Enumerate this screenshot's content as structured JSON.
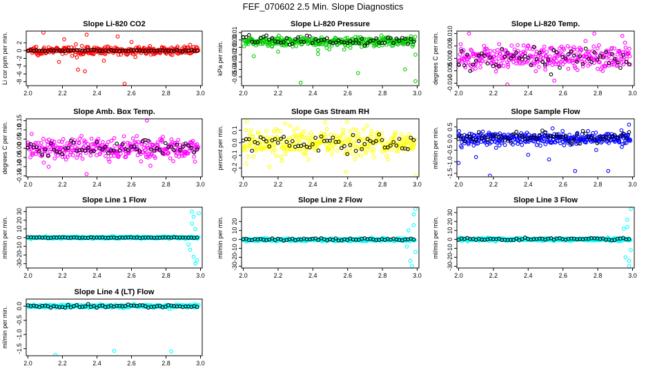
{
  "page_title": "FEF_070602  2.5 Min. Slope Diagnostics",
  "chart_data": [
    {
      "type": "scatter",
      "title": "Slope Li-820 CO2",
      "ylabel": "Li cor ppm per min.",
      "xlim": [
        1.99,
        3.01
      ],
      "ylim": [
        -9,
        5
      ],
      "xticks": [
        2.0,
        2.2,
        2.4,
        2.6,
        2.8,
        3.0
      ],
      "xtick_labels": [
        "2.0",
        "2.2",
        "2.4",
        "2.6",
        "2.8",
        "3.0"
      ],
      "yticks": [
        -8,
        -6,
        -4,
        -2,
        0,
        2
      ],
      "ytick_labels": [
        "-8",
        "-6",
        "-4",
        "-2",
        "0",
        "2"
      ],
      "grid": false,
      "color": "#ff0000",
      "center": 0.0,
      "spread": 0.9,
      "outliers": [
        [
          2.09,
          4.6
        ],
        [
          2.34,
          4.1
        ],
        [
          2.52,
          3.6
        ],
        [
          2.29,
          -4.9
        ],
        [
          2.33,
          -5.3
        ],
        [
          2.56,
          -8.5
        ],
        [
          2.21,
          2.9
        ],
        [
          2.18,
          -2.9
        ],
        [
          2.44,
          -2.6
        ],
        [
          2.6,
          2.2
        ]
      ],
      "black_center": 0.0,
      "black_spread": 0.15
    },
    {
      "type": "scatter",
      "title": "Slope Li-820 Pressure",
      "ylabel": "kPa per min.",
      "xlim": [
        1.99,
        3.01
      ],
      "ylim": [
        -0.062,
        0.012
      ],
      "xticks": [
        2.0,
        2.2,
        2.4,
        2.6,
        2.8,
        3.0
      ],
      "xtick_labels": [
        "2.0",
        "2.2",
        "2.4",
        "2.6",
        "2.8",
        "3.0"
      ],
      "yticks": [
        -0.05,
        -0.04,
        -0.03,
        -0.02,
        -0.01,
        0.0,
        0.01
      ],
      "ytick_labels": [
        "-0.05",
        "-0.04",
        "-0.03",
        "-0.02",
        "-0.01",
        "0.00",
        "0.01"
      ],
      "grid": false,
      "color": "#00cc00",
      "center": -0.002,
      "spread": 0.006,
      "outliers": [
        [
          2.33,
          -0.058
        ],
        [
          2.99,
          -0.056
        ],
        [
          2.66,
          -0.045
        ],
        [
          2.93,
          -0.04
        ],
        [
          2.99,
          -0.02
        ],
        [
          2.06,
          -0.022
        ],
        [
          2.43,
          -0.019
        ],
        [
          2.2,
          -0.016
        ],
        [
          2.58,
          -0.013
        ]
      ],
      "black_center": -0.001,
      "black_spread": 0.006
    },
    {
      "type": "scatter",
      "title": "Slope Li-820 Temp.",
      "ylabel": "degrees C per min.",
      "xlim": [
        1.99,
        3.01
      ],
      "ylim": [
        -0.011,
        0.011
      ],
      "xticks": [
        2.0,
        2.2,
        2.4,
        2.6,
        2.8,
        3.0
      ],
      "xtick_labels": [
        "2.0",
        "2.2",
        "2.4",
        "2.6",
        "2.8",
        "3.0"
      ],
      "yticks": [
        -0.01,
        -0.005,
        0.0,
        0.005,
        0.01
      ],
      "ytick_labels": [
        "-0.010",
        "-0.005",
        "0.000",
        "0.005",
        "0.010"
      ],
      "grid": false,
      "color": "#ff00ff",
      "center": 0.0005,
      "spread": 0.0045,
      "outliers": [
        [
          2.06,
          0.01
        ],
        [
          2.78,
          0.01
        ],
        [
          2.28,
          -0.0105
        ],
        [
          2.55,
          -0.009
        ]
      ],
      "black_center": 0.0,
      "black_spread": 0.004
    },
    {
      "type": "scatter",
      "title": "Slope Amb. Box Temp.",
      "ylabel": "degrees C per min.",
      "xlim": [
        1.99,
        3.01
      ],
      "ylim": [
        -0.155,
        0.16
      ],
      "xticks": [
        2.0,
        2.2,
        2.4,
        2.6,
        2.8,
        3.0
      ],
      "xtick_labels": [
        "2.0",
        "2.2",
        "2.4",
        "2.6",
        "2.8",
        "3.0"
      ],
      "yticks": [
        -0.15,
        -0.1,
        -0.05,
        0.0,
        0.05,
        0.1,
        0.15
      ],
      "ytick_labels": [
        "-0.15",
        "-0.10",
        "-0.05",
        "0.00",
        "0.05",
        "0.10",
        "0.15"
      ],
      "grid": false,
      "color": "#ff00ff",
      "center": 0.0,
      "spread": 0.055,
      "outliers": [
        [
          2.69,
          0.15
        ],
        [
          2.34,
          -0.14
        ],
        [
          2.12,
          -0.1
        ],
        [
          2.71,
          -0.095
        ]
      ],
      "black_center": 0.0,
      "black_spread": 0.035
    },
    {
      "type": "scatter",
      "title": "Slope Gas Stream RH",
      "ylabel": "percent per min.",
      "xlim": [
        1.99,
        3.01
      ],
      "ylim": [
        -0.27,
        0.19
      ],
      "xticks": [
        2.0,
        2.2,
        2.4,
        2.6,
        2.8,
        3.0
      ],
      "xtick_labels": [
        "2.0",
        "2.2",
        "2.4",
        "2.6",
        "2.8",
        "3.0"
      ],
      "yticks": [
        -0.2,
        -0.1,
        0.0,
        0.1
      ],
      "ytick_labels": [
        "-0.2",
        "-0.1",
        "0.0",
        "0.1"
      ],
      "grid": false,
      "color": "#ffff00",
      "center": 0.0,
      "spread": 0.09,
      "outliers": [
        [
          2.02,
          0.17
        ],
        [
          2.99,
          -0.26
        ],
        [
          2.59,
          -0.23
        ],
        [
          2.15,
          -0.19
        ]
      ],
      "black_center": 0.0,
      "black_spread": 0.06
    },
    {
      "type": "scatter",
      "title": "Slope Sample Flow",
      "ylabel": "ml/min per min.",
      "xlim": [
        1.99,
        3.01
      ],
      "ylim": [
        -1.65,
        0.85
      ],
      "xticks": [
        2.0,
        2.2,
        2.4,
        2.6,
        2.8,
        3.0
      ],
      "xtick_labels": [
        "2.0",
        "2.2",
        "2.4",
        "2.6",
        "2.8",
        "3.0"
      ],
      "yticks": [
        -1.5,
        -1.0,
        -0.5,
        0.0,
        0.5
      ],
      "ytick_labels": [
        "-1.5",
        "-1.0",
        "-0.5",
        "0.0",
        "0.5"
      ],
      "grid": false,
      "color": "#0000ff",
      "center": 0.0,
      "spread": 0.25,
      "outliers": [
        [
          2.18,
          -1.6
        ],
        [
          2.0,
          -1.05
        ],
        [
          2.67,
          -1.4
        ],
        [
          2.86,
          -1.4
        ],
        [
          2.98,
          0.6
        ],
        [
          2.1,
          -0.8
        ],
        [
          2.52,
          -0.9
        ],
        [
          2.4,
          -0.7
        ]
      ],
      "black_center": 0.05,
      "black_spread": 0.22
    },
    {
      "type": "scatter",
      "title": "Slope Line 1 Flow",
      "ylabel": "ml/min per min.",
      "xlim": [
        1.99,
        3.01
      ],
      "ylim": [
        -35,
        35
      ],
      "xticks": [
        2.0,
        2.2,
        2.4,
        2.6,
        2.8,
        3.0
      ],
      "xtick_labels": [
        "2.0",
        "2.2",
        "2.4",
        "2.6",
        "2.8",
        "3.0"
      ],
      "yticks": [
        -30,
        -20,
        -10,
        0,
        10,
        20,
        30
      ],
      "ytick_labels": [
        "-30",
        "-20",
        "-10",
        "0",
        "10",
        "20",
        "30"
      ],
      "grid": false,
      "color": "#00ffff",
      "center": 0.0,
      "spread": 1.2,
      "outliers": [
        [
          2.95,
          30
        ],
        [
          2.96,
          24
        ],
        [
          2.97,
          -30
        ],
        [
          2.96,
          -22
        ],
        [
          2.94,
          -14
        ],
        [
          2.95,
          16
        ],
        [
          2.97,
          10
        ],
        [
          2.93,
          -8
        ],
        [
          2.98,
          -26
        ],
        [
          2.99,
          28
        ]
      ],
      "black_center": 0.0,
      "black_spread": 0.3
    },
    {
      "type": "scatter",
      "title": "Slope Line 2 Flow",
      "ylabel": "ml/min per min.",
      "xlim": [
        1.99,
        3.01
      ],
      "ylim": [
        -32,
        36
      ],
      "xticks": [
        2.0,
        2.2,
        2.4,
        2.6,
        2.8,
        3.0
      ],
      "xtick_labels": [
        "2.0",
        "2.2",
        "2.4",
        "2.6",
        "2.8",
        "3.0"
      ],
      "yticks": [
        -30,
        -20,
        -10,
        0,
        10,
        20
      ],
      "ytick_labels": [
        "-30",
        "-20",
        "-10",
        "0",
        "10",
        "20"
      ],
      "grid": false,
      "color": "#00ffff",
      "center": -0.5,
      "spread": 1.5,
      "outliers": [
        [
          2.99,
          34
        ],
        [
          2.98,
          28
        ],
        [
          2.97,
          -30
        ],
        [
          2.96,
          -24
        ],
        [
          2.98,
          16
        ],
        [
          2.95,
          10
        ],
        [
          2.99,
          -14
        ],
        [
          2.94,
          -8
        ]
      ],
      "black_center": 0.0,
      "black_spread": 1.0
    },
    {
      "type": "scatter",
      "title": "Slope Line 3 Flow",
      "ylabel": "ml/min per min.",
      "xlim": [
        1.99,
        3.01
      ],
      "ylim": [
        -32,
        36
      ],
      "xticks": [
        2.0,
        2.2,
        2.4,
        2.6,
        2.8,
        3.0
      ],
      "xtick_labels": [
        "2.0",
        "2.2",
        "2.4",
        "2.6",
        "2.8",
        "3.0"
      ],
      "yticks": [
        -30,
        -20,
        -10,
        0,
        10,
        20,
        30
      ],
      "ytick_labels": [
        "-30",
        "-20",
        "-10",
        "0",
        "10",
        "20",
        "30"
      ],
      "grid": false,
      "color": "#00ffff",
      "center": 0.0,
      "spread": 1.5,
      "outliers": [
        [
          2.99,
          34
        ],
        [
          2.98,
          -30
        ],
        [
          2.97,
          22
        ],
        [
          2.96,
          -20
        ],
        [
          2.95,
          12
        ],
        [
          2.99,
          -12
        ],
        [
          2.97,
          14
        ],
        [
          2.98,
          -24
        ]
      ],
      "black_center": 0.5,
      "black_spread": 1.2
    },
    {
      "type": "scatter",
      "title": "Slope Line 4 (LT) Flow",
      "ylabel": "ml/min per min.",
      "xlim": [
        1.99,
        3.01
      ],
      "ylim": [
        -1.75,
        0.25
      ],
      "xticks": [
        2.0,
        2.2,
        2.4,
        2.6,
        2.8,
        3.0
      ],
      "xtick_labels": [
        "2.0",
        "2.2",
        "2.4",
        "2.6",
        "2.8",
        "3.0"
      ],
      "yticks": [
        -1.5,
        -1.0,
        -0.5,
        0.0
      ],
      "ytick_labels": [
        "-1.5",
        "-1.0",
        "-0.5",
        "0.0"
      ],
      "grid": false,
      "color": "#00ffff",
      "center": 0.0,
      "spread": 0.05,
      "outliers": [
        [
          2.16,
          -1.72
        ],
        [
          2.5,
          -1.58
        ],
        [
          2.83,
          -1.6
        ]
      ],
      "black_center": 0.0,
      "black_spread": 0.04
    }
  ]
}
